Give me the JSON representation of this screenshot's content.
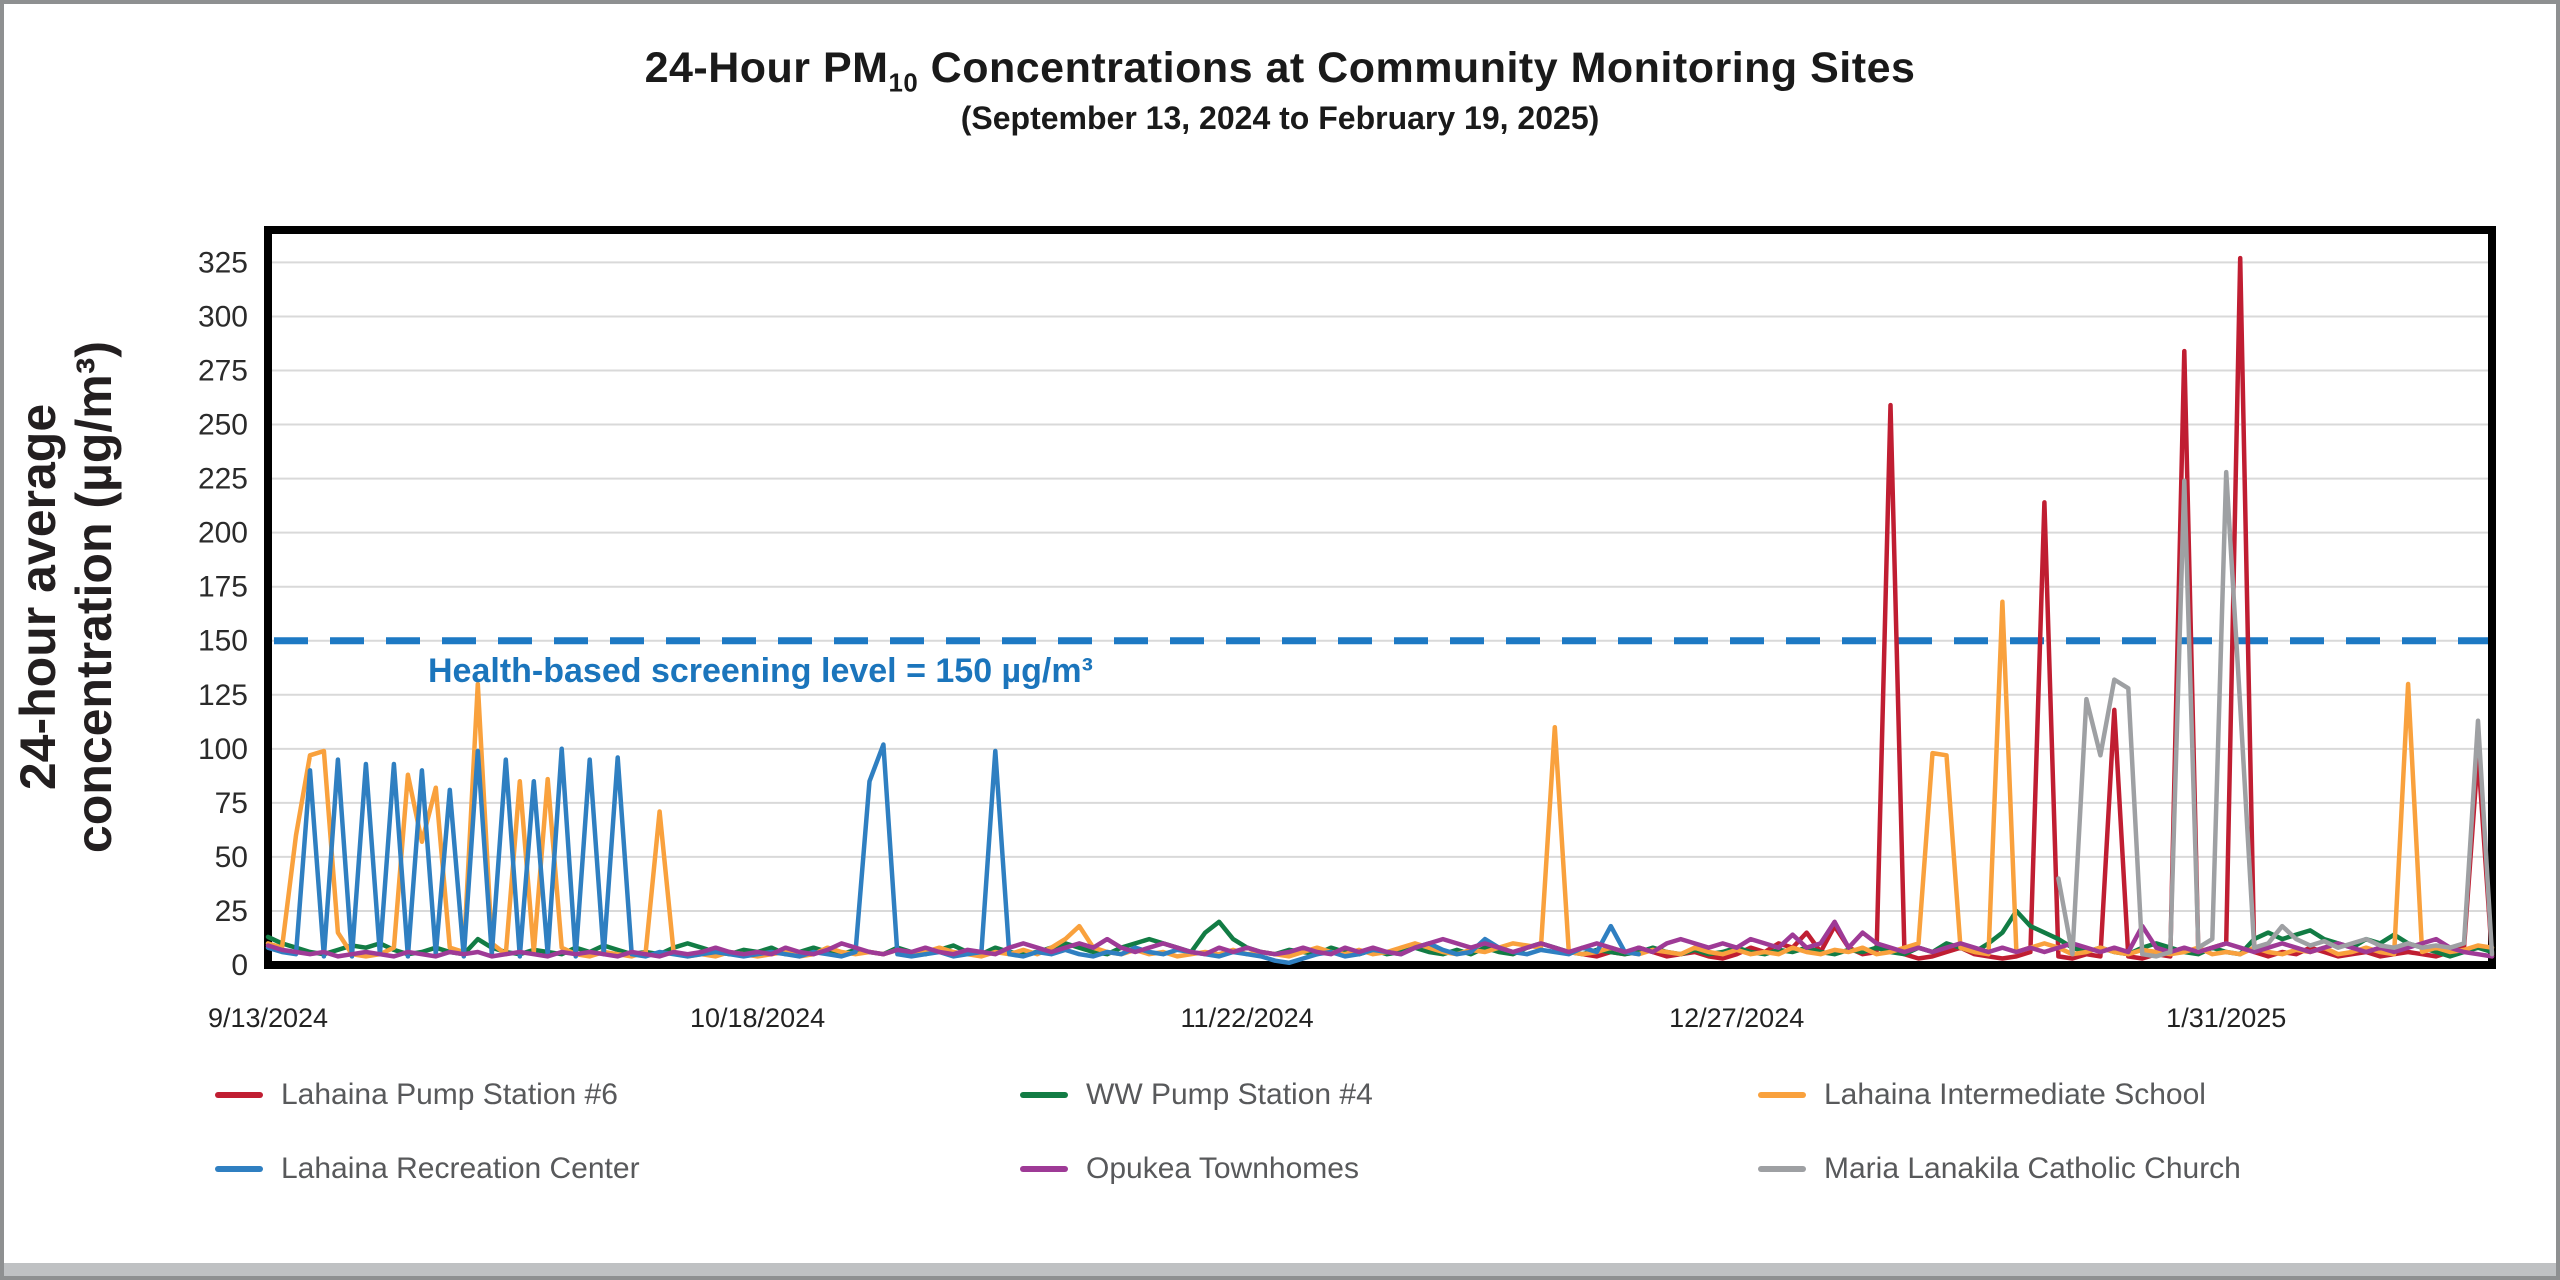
{
  "header": {
    "title_pre": "24-Hour PM",
    "title_sub": "10",
    "title_post": " Concentrations at Community Monitoring Sites",
    "subtitle": "(September 13, 2024 to February 19, 2025)"
  },
  "colors": {
    "red": "#C01E32",
    "blue": "#2F7FC1",
    "green": "#127C44",
    "orange": "#F9A13D",
    "purple": "#9E3A96",
    "gray": "#9EA0A3",
    "screening_line": "#1D79C4",
    "gridline": "#D9D9D9",
    "axis_frame": "#000000",
    "legend_text": "#58595B"
  },
  "chart_data": {
    "type": "line",
    "title": "24-Hour PM10 Concentrations at Community Monitoring Sites",
    "subtitle": "(September 13, 2024 to February 19, 2025)",
    "ylabel_line1": "24-hour average",
    "ylabel_line2": "concentration (µg/m³)",
    "y_axis": {
      "min": 0,
      "max_value_shown": 325,
      "plot_max": 340,
      "tick_step": 25,
      "tick_labels": [
        "0",
        "25",
        "50",
        "75",
        "100",
        "125",
        "150",
        "175",
        "200",
        "225",
        "250",
        "275",
        "300",
        "325"
      ]
    },
    "x_axis": {
      "start_date": "9/13/2024",
      "end_date": "2/19/2025",
      "total_days": 159,
      "ticks": [
        {
          "day": 0,
          "label": "9/13/2024"
        },
        {
          "day": 35,
          "label": "10/18/2024"
        },
        {
          "day": 70,
          "label": "11/22/2024"
        },
        {
          "day": 105,
          "label": "12/27/2024"
        },
        {
          "day": 140,
          "label": "1/31/2025"
        }
      ]
    },
    "reference_line": {
      "value": 150,
      "style": "dashed",
      "label": "Health-based screening level = 150 µg/m³"
    },
    "grid": "horizontal",
    "legend_position": "bottom",
    "series": [
      {
        "name": "Lahaina Pump Station #6",
        "color_key": "red",
        "start_day": 94,
        "values": [
          5,
          4,
          6,
          5,
          8,
          6,
          4,
          5,
          6,
          4,
          3,
          5,
          8,
          6,
          10,
          8,
          15,
          6,
          18,
          8,
          5,
          6,
          259,
          5,
          3,
          4,
          6,
          8,
          5,
          4,
          3,
          4,
          6,
          214,
          4,
          3,
          5,
          4,
          118,
          4,
          3,
          5,
          4,
          284,
          6,
          8,
          10,
          327,
          6,
          4,
          6,
          5,
          8,
          6,
          4,
          5,
          6,
          4,
          5,
          6,
          5,
          4,
          6,
          8,
          98,
          4
        ]
      },
      {
        "name": "WW Pump Station #4",
        "color_key": "green",
        "start_day": 0,
        "values": [
          13,
          10,
          8,
          6,
          5,
          7,
          9,
          8,
          10,
          7,
          5,
          6,
          8,
          6,
          5,
          12,
          8,
          6,
          5,
          7,
          6,
          5,
          8,
          6,
          9,
          7,
          5,
          6,
          5,
          8,
          10,
          8,
          6,
          5,
          7,
          6,
          8,
          5,
          6,
          8,
          6,
          5,
          7,
          6,
          5,
          8,
          6,
          5,
          7,
          9,
          6,
          5,
          8,
          6,
          5,
          6,
          8,
          10,
          8,
          6,
          5,
          8,
          10,
          12,
          10,
          8,
          6,
          15,
          20,
          12,
          8,
          6,
          5,
          7,
          6,
          5,
          8,
          6,
          5,
          7,
          5,
          6,
          8,
          6,
          5,
          7,
          5,
          8,
          6,
          5,
          8,
          10,
          8,
          6,
          5,
          7,
          6,
          5,
          6,
          8,
          6,
          5,
          7,
          5,
          6,
          8,
          6,
          5,
          7,
          6,
          8,
          6,
          5,
          7,
          6,
          8,
          6,
          5,
          8,
          6,
          10,
          8,
          6,
          10,
          15,
          25,
          18,
          15,
          12,
          8,
          6,
          8,
          6,
          5,
          8,
          10,
          8,
          6,
          5,
          8,
          6,
          5,
          12,
          15,
          12,
          14,
          16,
          12,
          10,
          8,
          12,
          10,
          14,
          10,
          8,
          6,
          4,
          6,
          8,
          6
        ]
      },
      {
        "name": "Lahaina Intermediate School",
        "color_key": "orange",
        "start_day": 0,
        "values": [
          10,
          8,
          60,
          97,
          99,
          15,
          5,
          4,
          5,
          8,
          88,
          57,
          82,
          8,
          6,
          130,
          10,
          5,
          85,
          6,
          86,
          8,
          5,
          4,
          6,
          5,
          4,
          6,
          71,
          6,
          4,
          5,
          4,
          6,
          5,
          4,
          5,
          6,
          4,
          5,
          8,
          6,
          5,
          6,
          5,
          7,
          5,
          6,
          8,
          6,
          5,
          4,
          6,
          5,
          7,
          5,
          8,
          12,
          18,
          8,
          6,
          5,
          7,
          5,
          6,
          4,
          5,
          6,
          5,
          7,
          5,
          6,
          5,
          4,
          6,
          8,
          6,
          5,
          7,
          5,
          6,
          8,
          10,
          8,
          6,
          5,
          7,
          6,
          8,
          10,
          9,
          8,
          110,
          6,
          5,
          6,
          8,
          6,
          5,
          7,
          6,
          5,
          8,
          6,
          5,
          7,
          5,
          6,
          5,
          8,
          6,
          5,
          7,
          6,
          8,
          5,
          6,
          8,
          10,
          98,
          97,
          8,
          6,
          5,
          168,
          6,
          8,
          10,
          8,
          5,
          6,
          8,
          6,
          5,
          7,
          6,
          5,
          6,
          8,
          5,
          6,
          5,
          8,
          6,
          5,
          7,
          6,
          8,
          5,
          6,
          8,
          6,
          5,
          130,
          6,
          8,
          6,
          7,
          9,
          8
        ]
      },
      {
        "name": "Lahaina Recreation Center",
        "color_key": "blue",
        "start_day": 0,
        "values": [
          8,
          6,
          5,
          90,
          4,
          95,
          4,
          93,
          5,
          93,
          4,
          90,
          5,
          81,
          4,
          99,
          5,
          95,
          4,
          85,
          5,
          100,
          4,
          95,
          5,
          96,
          5,
          4,
          6,
          5,
          4,
          5,
          6,
          5,
          4,
          5,
          6,
          5,
          4,
          6,
          5,
          4,
          6,
          85,
          102,
          5,
          4,
          5,
          6,
          4,
          5,
          6,
          99,
          5,
          4,
          6,
          5,
          7,
          5,
          4,
          6,
          5,
          8,
          6,
          5,
          7,
          6,
          5,
          4,
          6,
          5,
          4,
          2,
          1,
          3,
          5,
          6,
          4,
          5,
          7,
          6,
          5,
          8,
          10,
          7,
          5,
          6,
          12,
          8,
          6,
          5,
          7,
          6,
          5,
          8,
          6,
          18,
          6,
          5
        ]
      },
      {
        "name": "Opukea Townhomes",
        "color_key": "purple",
        "start_day": 0,
        "values": [
          9,
          7,
          6,
          5,
          6,
          4,
          5,
          6,
          5,
          4,
          6,
          5,
          4,
          6,
          5,
          6,
          4,
          5,
          6,
          5,
          4,
          6,
          5,
          6,
          5,
          4,
          6,
          5,
          4,
          6,
          5,
          6,
          8,
          6,
          5,
          6,
          5,
          8,
          6,
          5,
          7,
          10,
          8,
          6,
          5,
          7,
          6,
          8,
          6,
          5,
          7,
          6,
          5,
          8,
          10,
          8,
          6,
          8,
          10,
          8,
          12,
          8,
          6,
          8,
          10,
          8,
          6,
          5,
          8,
          6,
          8,
          6,
          5,
          6,
          8,
          6,
          5,
          8,
          6,
          8,
          6,
          5,
          8,
          10,
          12,
          10,
          8,
          10,
          8,
          6,
          8,
          10,
          8,
          6,
          8,
          10,
          8,
          6,
          8,
          6,
          10,
          12,
          10,
          8,
          10,
          8,
          12,
          10,
          8,
          14,
          8,
          10,
          20,
          8,
          15,
          10,
          8,
          6,
          8,
          6,
          8,
          10,
          8,
          6,
          8,
          6,
          8,
          6,
          8,
          10,
          8,
          6,
          8,
          6,
          18,
          8,
          6,
          8,
          6,
          8,
          10,
          8,
          6,
          8,
          10,
          8,
          6,
          8,
          10,
          8,
          6,
          8,
          6,
          8,
          10,
          12,
          8,
          6,
          5,
          4
        ]
      },
      {
        "name": "Maria Lanakila Catholic Church",
        "color_key": "gray",
        "start_day": 128,
        "values": [
          40,
          5,
          123,
          97,
          132,
          128,
          5,
          4,
          6,
          224,
          8,
          12,
          228,
          120,
          8,
          10,
          18,
          12,
          9,
          11,
          8,
          10,
          12,
          9,
          8,
          10,
          8,
          9,
          8,
          10,
          113,
          5
        ]
      }
    ]
  },
  "legend": {
    "items": [
      {
        "label": "Lahaina Pump Station #6",
        "color_key": "red"
      },
      {
        "label": "WW Pump Station #4",
        "color_key": "green"
      },
      {
        "label": "Lahaina Intermediate School",
        "color_key": "orange"
      },
      {
        "label": "Lahaina Recreation Center",
        "color_key": "blue"
      },
      {
        "label": "Opukea Townhomes",
        "color_key": "purple"
      },
      {
        "label": "Maria Lanakila Catholic Church",
        "color_key": "gray"
      }
    ]
  }
}
